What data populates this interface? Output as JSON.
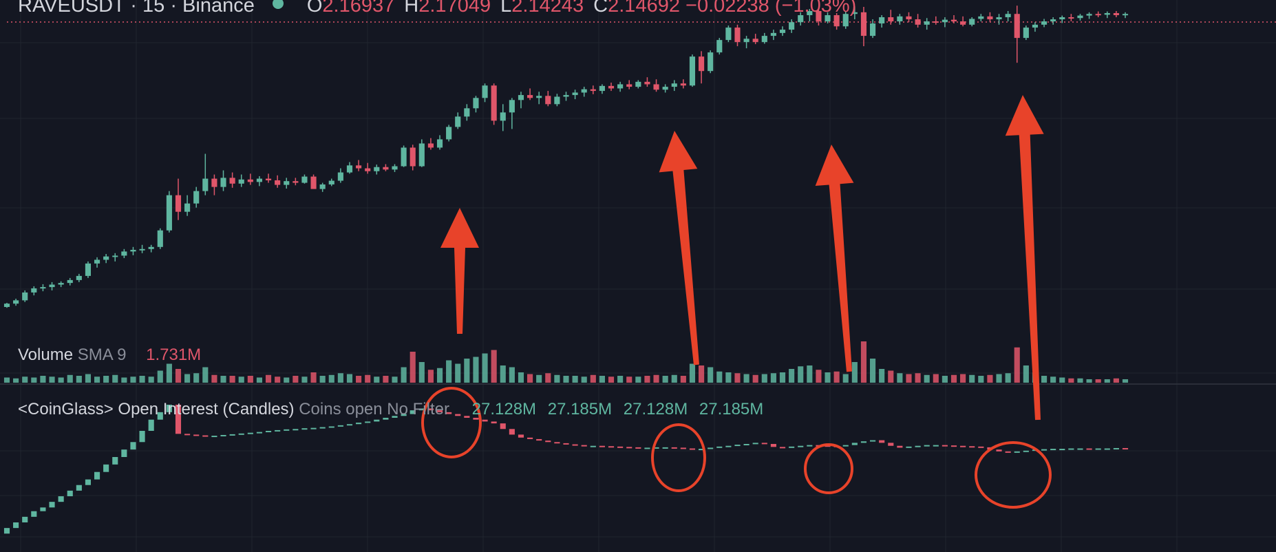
{
  "header": {
    "symbol": "RAVEUSDT · 15 · Binance",
    "open_key": "O",
    "open": "2.16937",
    "high_key": "H",
    "high": "2.17049",
    "low_key": "L",
    "low": "2.14243",
    "close_key": "C",
    "close": "2.14692",
    "change": "−0.02238 (−1.03%)"
  },
  "volume_pane": {
    "title": "Volume",
    "sma_label": "SMA 9",
    "value": "1.731M"
  },
  "oi_pane": {
    "title": "<CoinGlass> Open Interest (Candles)",
    "settings": "Coins open No Filter",
    "values": [
      "27.128M",
      "27.185M",
      "27.128M",
      "27.185M"
    ]
  },
  "colors": {
    "up": "#5fb6a0",
    "down": "#e0566a",
    "background": "#141722",
    "annotation": "#e8432a",
    "grid": "#20242f"
  },
  "chart_data": [
    {
      "type": "candlestick",
      "title": "RAVEUSDT · 15 · Binance",
      "series": [
        {
          "name": "price",
          "values": [
            [
              1.55,
              1.56,
              1.548,
              1.558
            ],
            [
              1.558,
              1.57,
              1.553,
              1.566
            ],
            [
              1.566,
              1.59,
              1.562,
              1.585
            ],
            [
              1.585,
              1.6,
              1.578,
              1.595
            ],
            [
              1.595,
              1.605,
              1.588,
              1.598
            ],
            [
              1.598,
              1.61,
              1.59,
              1.604
            ],
            [
              1.604,
              1.612,
              1.598,
              1.608
            ],
            [
              1.608,
              1.62,
              1.602,
              1.615
            ],
            [
              1.615,
              1.63,
              1.61,
              1.625
            ],
            [
              1.625,
              1.66,
              1.62,
              1.655
            ],
            [
              1.655,
              1.67,
              1.645,
              1.664
            ],
            [
              1.664,
              1.678,
              1.656,
              1.672
            ],
            [
              1.672,
              1.68,
              1.66,
              1.674
            ],
            [
              1.674,
              1.69,
              1.668,
              1.684
            ],
            [
              1.684,
              1.695,
              1.675,
              1.688
            ],
            [
              1.688,
              1.7,
              1.68,
              1.69
            ],
            [
              1.69,
              1.7,
              1.682,
              1.695
            ],
            [
              1.695,
              1.74,
              1.69,
              1.735
            ],
            [
              1.735,
              1.83,
              1.73,
              1.82
            ],
            [
              1.82,
              1.86,
              1.76,
              1.78
            ],
            [
              1.78,
              1.82,
              1.77,
              1.8
            ],
            [
              1.8,
              1.84,
              1.79,
              1.83
            ],
            [
              1.83,
              1.92,
              1.82,
              1.86
            ],
            [
              1.86,
              1.87,
              1.82,
              1.84
            ],
            [
              1.84,
              1.88,
              1.83,
              1.862
            ],
            [
              1.862,
              1.875,
              1.838,
              1.848
            ],
            [
              1.848,
              1.87,
              1.84,
              1.858
            ],
            [
              1.858,
              1.872,
              1.845,
              1.852
            ],
            [
              1.852,
              1.866,
              1.842,
              1.86
            ],
            [
              1.86,
              1.872,
              1.85,
              1.856
            ],
            [
              1.856,
              1.868,
              1.838,
              1.845
            ],
            [
              1.845,
              1.862,
              1.836,
              1.854
            ],
            [
              1.854,
              1.862,
              1.844,
              1.85
            ],
            [
              1.85,
              1.87,
              1.848,
              1.865
            ],
            [
              1.865,
              1.87,
              1.84,
              1.835
            ],
            [
              1.835,
              1.85,
              1.828,
              1.846
            ],
            [
              1.846,
              1.86,
              1.842,
              1.855
            ],
            [
              1.855,
              1.885,
              1.85,
              1.875
            ],
            [
              1.875,
              1.9,
              1.872,
              1.892
            ],
            [
              1.892,
              1.905,
              1.878,
              1.885
            ],
            [
              1.885,
              1.898,
              1.872,
              1.878
            ],
            [
              1.878,
              1.894,
              1.87,
              1.888
            ],
            [
              1.888,
              1.895,
              1.878,
              1.882
            ],
            [
              1.882,
              1.895,
              1.876,
              1.89
            ],
            [
              1.89,
              1.94,
              1.888,
              1.935
            ],
            [
              1.935,
              1.942,
              1.88,
              1.89
            ],
            [
              1.89,
              1.955,
              1.888,
              1.945
            ],
            [
              1.945,
              1.958,
              1.93,
              1.935
            ],
            [
              1.935,
              1.965,
              1.93,
              1.955
            ],
            [
              1.955,
              1.99,
              1.95,
              1.985
            ],
            [
              1.985,
              2.02,
              1.98,
              2.01
            ],
            [
              2.01,
              2.04,
              2.0,
              2.03
            ],
            [
              2.03,
              2.06,
              2.02,
              2.055
            ],
            [
              2.055,
              2.09,
              2.045,
              2.085
            ],
            [
              2.085,
              2.09,
              1.99,
              2.0
            ],
            [
              2.0,
              2.04,
              1.975,
              2.02
            ],
            [
              2.02,
              2.055,
              1.98,
              2.05
            ],
            [
              2.05,
              2.07,
              2.03,
              2.062
            ],
            [
              2.062,
              2.078,
              2.05,
              2.055
            ],
            [
              2.055,
              2.07,
              2.04,
              2.06
            ],
            [
              2.06,
              2.072,
              2.035,
              2.04
            ],
            [
              2.04,
              2.065,
              2.035,
              2.058
            ],
            [
              2.058,
              2.07,
              2.048,
              2.062
            ],
            [
              2.062,
              2.075,
              2.052,
              2.068
            ],
            [
              2.068,
              2.082,
              2.058,
              2.076
            ],
            [
              2.076,
              2.085,
              2.064,
              2.072
            ],
            [
              2.072,
              2.088,
              2.065,
              2.084
            ],
            [
              2.084,
              2.092,
              2.072,
              2.078
            ],
            [
              2.078,
              2.094,
              2.07,
              2.088
            ],
            [
              2.088,
              2.098,
              2.076,
              2.082
            ],
            [
              2.082,
              2.098,
              2.078,
              2.094
            ],
            [
              2.094,
              2.105,
              2.082,
              2.088
            ],
            [
              2.088,
              2.1,
              2.07,
              2.075
            ],
            [
              2.075,
              2.088,
              2.068,
              2.082
            ],
            [
              2.082,
              2.098,
              2.072,
              2.09
            ],
            [
              2.09,
              2.1,
              2.078,
              2.085
            ],
            [
              2.085,
              2.16,
              2.082,
              2.155
            ],
            [
              2.155,
              2.168,
              2.09,
              2.12
            ],
            [
              2.12,
              2.17,
              2.115,
              2.165
            ],
            [
              2.165,
              2.2,
              2.16,
              2.195
            ],
            [
              2.195,
              2.23,
              2.19,
              2.225
            ],
            [
              2.225,
              2.232,
              2.18,
              2.19
            ],
            [
              2.19,
              2.205,
              2.175,
              2.198
            ],
            [
              2.198,
              2.21,
              2.185,
              2.19
            ],
            [
              2.19,
              2.212,
              2.186,
              2.205
            ],
            [
              2.205,
              2.22,
              2.195,
              2.212
            ],
            [
              2.212,
              2.228,
              2.205,
              2.22
            ],
            [
              2.22,
              2.245,
              2.212,
              2.238
            ],
            [
              2.238,
              2.262,
              2.23,
              2.255
            ],
            [
              2.255,
              2.27,
              2.24,
              2.265
            ],
            [
              2.265,
              2.27,
              2.23,
              2.24
            ],
            [
              2.24,
              2.262,
              2.235,
              2.255
            ],
            [
              2.255,
              2.26,
              2.22,
              2.228
            ],
            [
              2.228,
              2.265,
              2.222,
              2.258
            ],
            [
              2.258,
              2.276,
              2.245,
              2.262
            ],
            [
              2.262,
              2.275,
              2.18,
              2.205
            ],
            [
              2.205,
              2.245,
              2.2,
              2.235
            ],
            [
              2.235,
              2.255,
              2.225,
              2.25
            ],
            [
              2.25,
              2.268,
              2.232,
              2.24
            ],
            [
              2.24,
              2.258,
              2.232,
              2.252
            ],
            [
              2.252,
              2.262,
              2.238,
              2.245
            ],
            [
              2.245,
              2.258,
              2.225,
              2.232
            ],
            [
              2.232,
              2.248,
              2.22,
              2.24
            ],
            [
              2.24,
              2.252,
              2.232,
              2.238
            ],
            [
              2.238,
              2.25,
              2.226,
              2.244
            ],
            [
              2.244,
              2.255,
              2.235,
              2.24
            ],
            [
              2.24,
              2.252,
              2.228,
              2.232
            ],
            [
              2.232,
              2.25,
              2.228,
              2.246
            ],
            [
              2.246,
              2.258,
              2.24,
              2.252
            ],
            [
              2.252,
              2.262,
              2.238,
              2.245
            ],
            [
              2.245,
              2.258,
              2.232,
              2.25
            ],
            [
              2.25,
              2.265,
              2.24,
              2.258
            ],
            [
              2.258,
              2.278,
              2.14,
              2.2
            ],
            [
              2.2,
              2.23,
              2.195,
              2.225
            ],
            [
              2.225,
              2.238,
              2.215,
              2.232
            ],
            [
              2.232,
              2.246,
              2.226,
              2.24
            ],
            [
              2.24,
              2.25,
              2.232,
              2.245
            ],
            [
              2.245,
              2.254,
              2.236,
              2.25
            ],
            [
              2.25,
              2.258,
              2.24,
              2.248
            ],
            [
              2.248,
              2.258,
              2.242,
              2.254
            ],
            [
              2.254,
              2.262,
              2.246,
              2.258
            ],
            [
              2.258,
              2.264,
              2.25,
              2.256
            ],
            [
              2.256,
              2.264,
              2.248,
              2.26
            ],
            [
              2.26,
              2.265,
              2.25,
              2.255
            ],
            [
              2.255,
              2.262,
              2.248,
              2.258
            ]
          ]
        }
      ],
      "markers": {
        "open": 2.16937,
        "high": 2.17049,
        "low": 2.14243,
        "close": 2.14692,
        "change": -0.02238,
        "change_pct": -1.03
      }
    },
    {
      "type": "bar",
      "title": "Volume",
      "series": [
        {
          "name": "SMA 9",
          "values": [
            0.6,
            0.5,
            0.7,
            0.6,
            0.8,
            0.7,
            0.6,
            0.9,
            0.8,
            1.0,
            0.7,
            0.8,
            0.9,
            0.6,
            0.7,
            0.8,
            0.7,
            1.4,
            2.2,
            1.6,
            1.0,
            1.1,
            1.8,
            0.9,
            0.8,
            0.8,
            0.7,
            0.8,
            0.6,
            0.9,
            0.7,
            0.6,
            0.8,
            0.7,
            1.2,
            0.8,
            0.9,
            1.1,
            1.0,
            0.8,
            0.9,
            0.7,
            0.8,
            0.7,
            1.8,
            3.6,
            2.4,
            1.5,
            1.7,
            2.6,
            2.2,
            2.8,
            3.0,
            3.4,
            3.8,
            2.0,
            1.8,
            1.2,
            1.0,
            0.9,
            1.1,
            0.9,
            0.8,
            0.8,
            0.7,
            0.9,
            0.8,
            0.7,
            0.8,
            0.7,
            0.7,
            0.8,
            0.9,
            0.8,
            0.9,
            0.8,
            2.2,
            2.0,
            1.8,
            1.3,
            1.2,
            1.1,
            1.0,
            0.9,
            1.0,
            1.1,
            1.2,
            1.6,
            1.9,
            2.0,
            1.5,
            1.2,
            1.3,
            1.0,
            2.4,
            4.8,
            2.8,
            1.6,
            1.4,
            1.1,
            1.0,
            1.1,
            0.9,
            1.0,
            0.8,
            0.9,
            1.0,
            0.9,
            0.8,
            0.9,
            1.0,
            1.1,
            4.1,
            2.0,
            1.2,
            0.8,
            0.7,
            0.6,
            0.5,
            0.5,
            0.4,
            0.4,
            0.4,
            0.5,
            0.4
          ]
        }
      ],
      "sma_value": "1.731M"
    },
    {
      "type": "candlestick",
      "title": "<CoinGlass> Open Interest (Candles)",
      "series": [
        {
          "name": "open interest",
          "values": [
            24.9,
            25.05,
            25.2,
            25.35,
            25.45,
            25.6,
            25.75,
            25.9,
            26.05,
            26.2,
            26.4,
            26.6,
            26.8,
            27.0,
            27.2,
            27.5,
            27.8,
            28.0,
            28.2,
            27.42,
            27.4,
            27.38,
            27.36,
            27.37,
            27.39,
            27.41,
            27.43,
            27.45,
            27.47,
            27.5,
            27.52,
            27.54,
            27.55,
            27.57,
            27.58,
            27.6,
            27.62,
            27.65,
            27.68,
            27.72,
            27.75,
            27.8,
            27.85,
            27.9,
            27.95,
            28.05,
            28.1,
            28.05,
            28.0,
            27.95,
            27.9,
            27.85,
            27.8,
            27.75,
            27.7,
            27.55,
            27.4,
            27.32,
            27.28,
            27.24,
            27.2,
            27.17,
            27.14,
            27.12,
            27.1,
            27.1,
            27.09,
            27.08,
            27.07,
            27.06,
            27.05,
            27.05,
            27.06,
            27.06,
            27.05,
            27.03,
            27.0,
            27.02,
            27.05,
            27.08,
            27.1,
            27.13,
            27.15,
            27.18,
            27.15,
            27.07,
            27.05,
            27.08,
            27.1,
            27.12,
            27.11,
            27.1,
            27.09,
            27.12,
            27.18,
            27.22,
            27.25,
            27.18,
            27.1,
            27.05,
            27.08,
            27.1,
            27.12,
            27.12,
            27.11,
            27.1,
            27.09,
            27.08,
            27.06,
            27.0,
            26.95,
            26.93,
            26.95,
            26.97,
            27.0,
            27.01,
            27.02,
            27.02,
            27.03,
            27.03,
            27.02,
            27.03,
            27.03,
            27.04,
            27.03
          ]
        }
      ],
      "value_labels": [
        "27.128M",
        "27.185M",
        "27.128M",
        "27.185M"
      ]
    }
  ]
}
